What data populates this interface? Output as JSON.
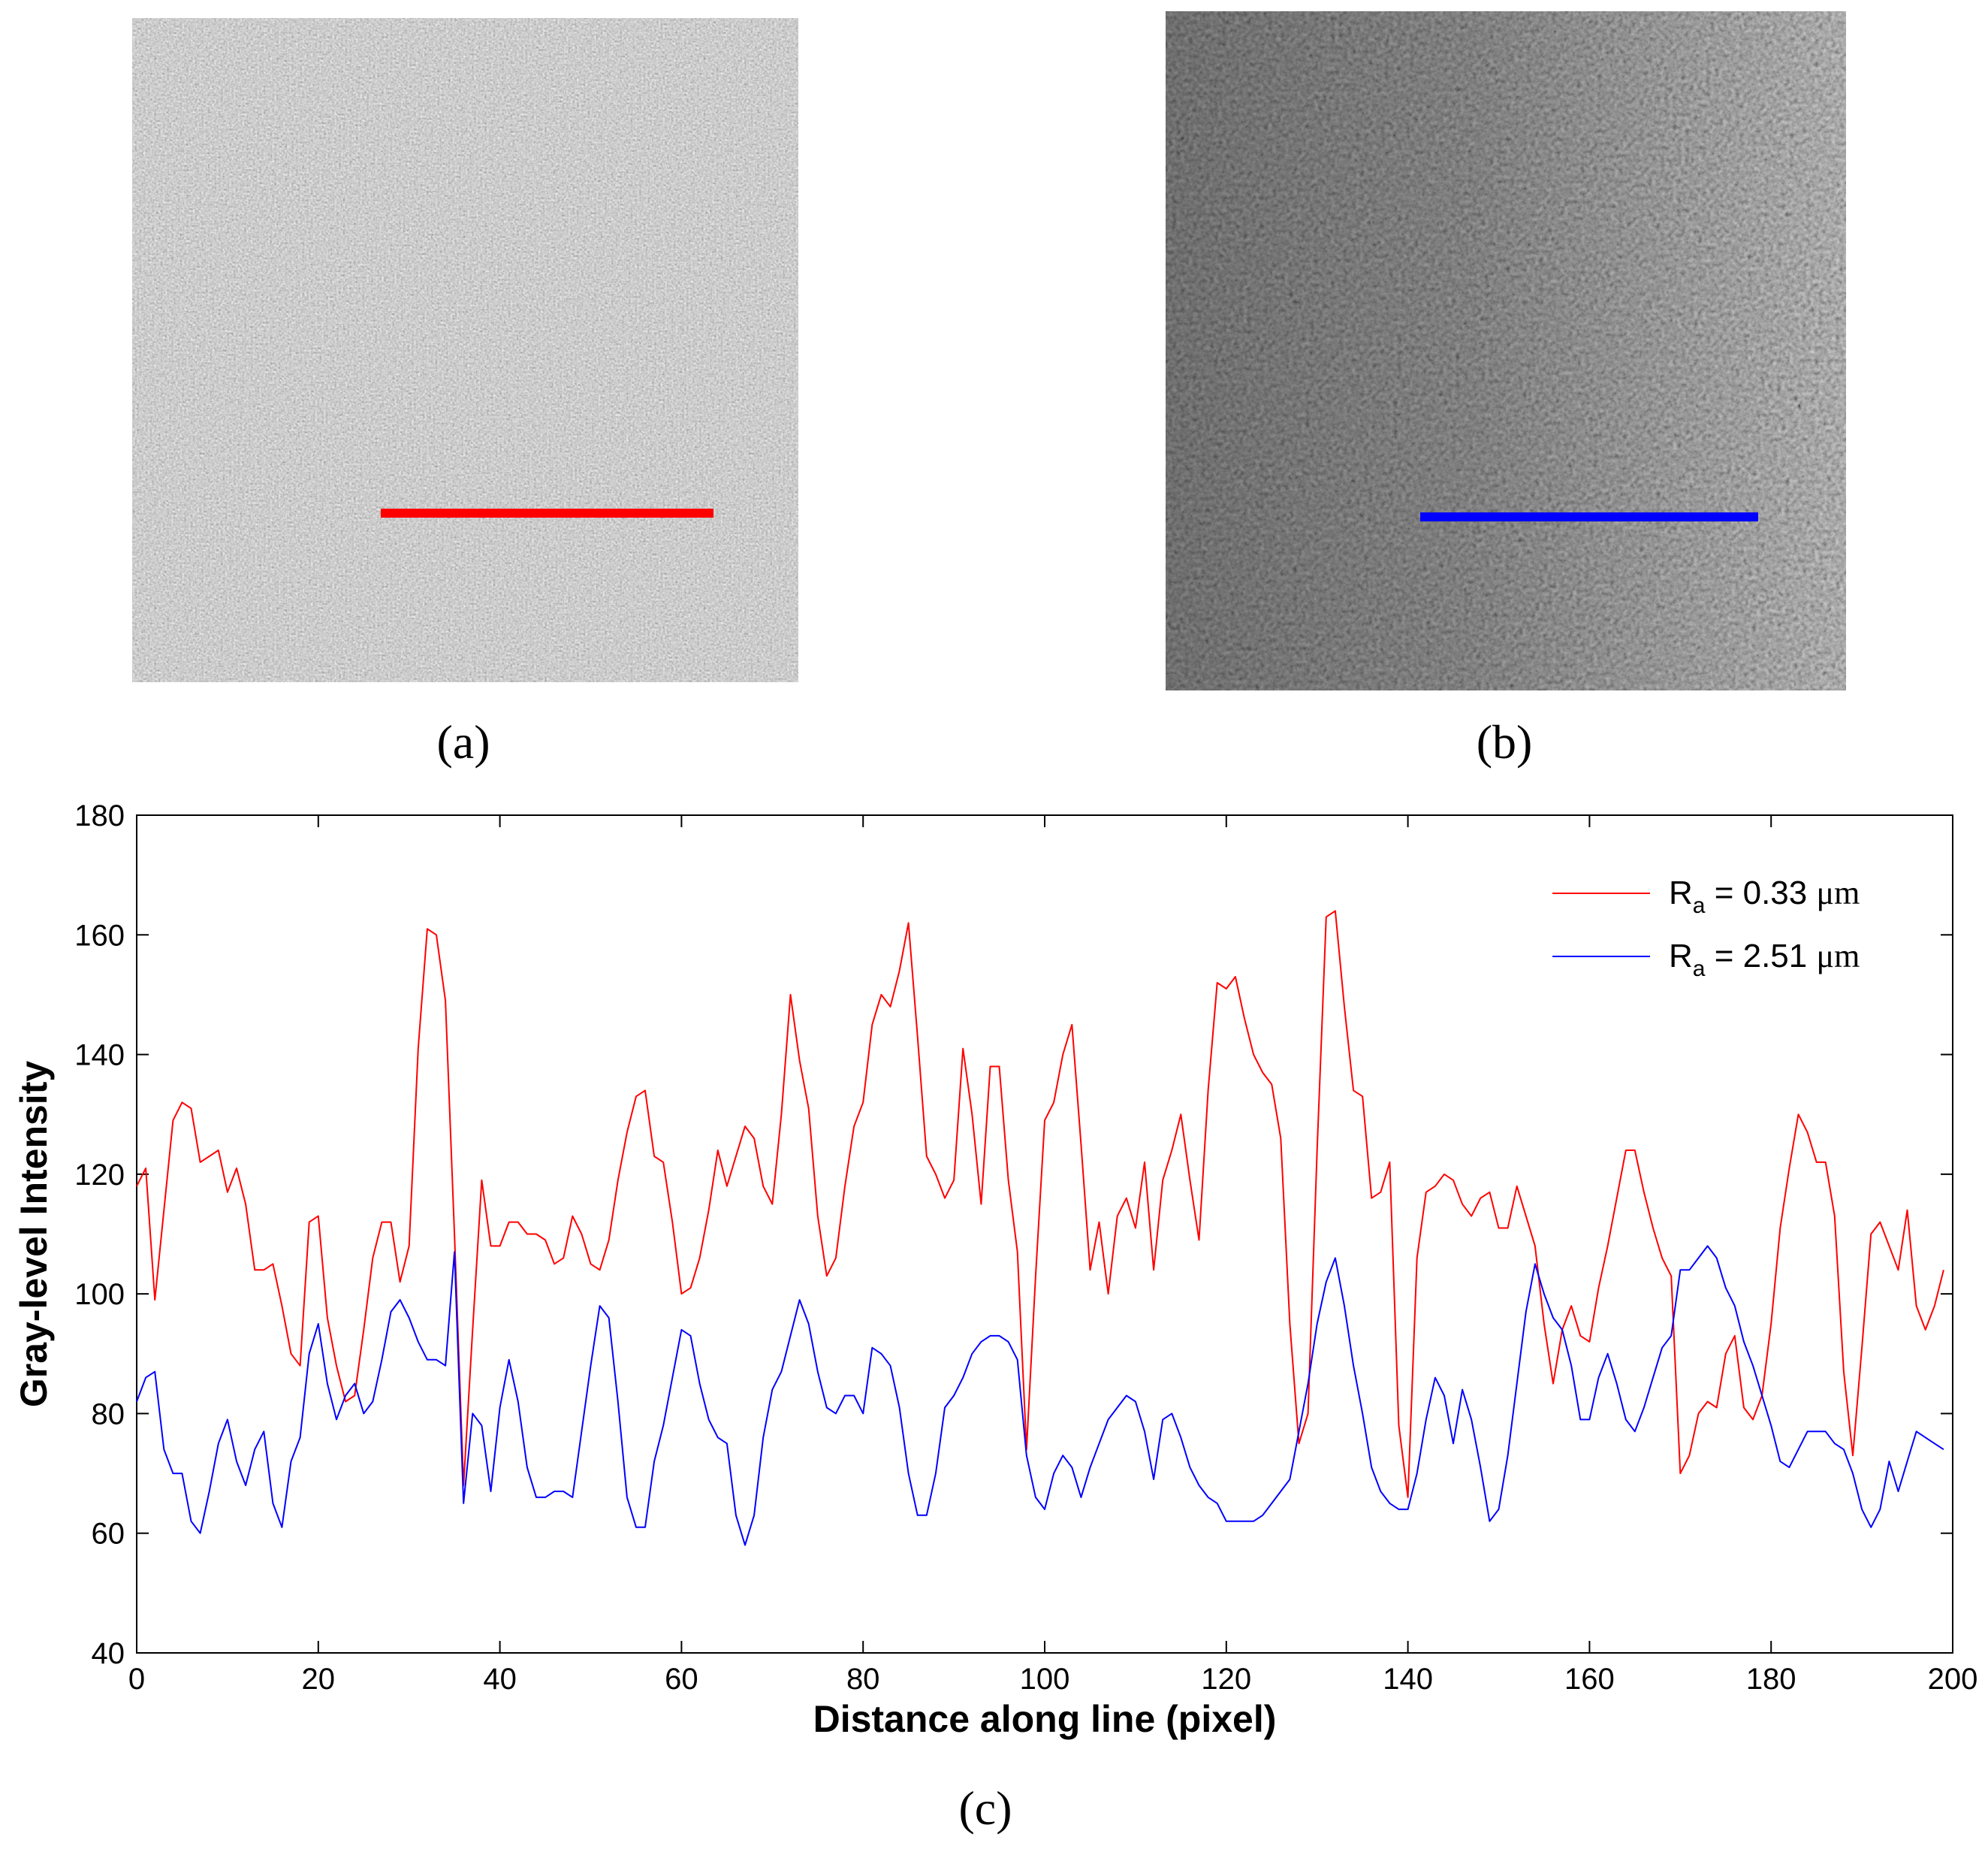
{
  "panels": {
    "a": {
      "label": "(a)",
      "line_color": "#ff0000"
    },
    "b": {
      "label": "(b)",
      "line_color": "#0000ff"
    },
    "c": {
      "label": "(c)"
    }
  },
  "chart_data": {
    "type": "line",
    "title": "",
    "xlabel": "Distance along line (pixel)",
    "ylabel": "Gray-level  Intensity",
    "xlim": [
      0,
      200
    ],
    "ylim": [
      40,
      180
    ],
    "xticks": [
      0,
      20,
      40,
      60,
      80,
      100,
      120,
      140,
      160,
      180,
      200
    ],
    "yticks": [
      40,
      60,
      80,
      100,
      120,
      140,
      160,
      180
    ],
    "grid": false,
    "legend": "top-right",
    "series": [
      {
        "name": "Ra = 0.33 μm",
        "legend_main": "R",
        "legend_sub": "a",
        "legend_rest": " = 0.33 ",
        "legend_unit": "μm",
        "color": "#ff0000",
        "values": [
          118,
          121,
          99,
          114,
          129,
          132,
          131,
          122,
          123,
          124,
          117,
          121,
          115,
          104,
          104,
          105,
          98,
          90,
          88,
          112,
          113,
          96,
          88,
          82,
          83,
          94,
          106,
          112,
          112,
          102,
          108,
          141,
          161,
          160,
          149,
          110,
          68,
          94,
          119,
          108,
          108,
          112,
          112,
          110,
          110,
          109,
          105,
          106,
          113,
          110,
          105,
          104,
          109,
          119,
          127,
          133,
          134,
          123,
          122,
          112,
          100,
          101,
          106,
          114,
          124,
          118,
          123,
          128,
          126,
          118,
          115,
          130,
          150,
          139,
          131,
          113,
          103,
          106,
          118,
          128,
          132,
          145,
          150,
          148,
          154,
          162,
          143,
          123,
          120,
          116,
          119,
          141,
          130,
          115,
          138,
          138,
          119,
          107,
          74,
          103,
          129,
          132,
          140,
          145,
          125,
          104,
          112,
          100,
          113,
          116,
          111,
          122,
          104,
          119,
          124,
          130,
          119,
          109,
          134,
          152,
          151,
          153,
          146,
          140,
          137,
          135,
          126,
          95,
          75,
          80,
          124,
          163,
          164,
          148,
          134,
          133,
          116,
          117,
          122,
          78,
          66,
          106,
          117,
          118,
          120,
          119,
          115,
          113,
          116,
          117,
          111,
          111,
          118,
          113,
          108,
          95,
          85,
          94,
          98,
          93,
          92,
          101,
          108,
          116,
          124,
          124,
          117,
          111,
          106,
          103,
          70,
          73,
          80,
          82,
          81,
          90,
          93,
          81,
          79,
          83,
          95,
          111,
          121,
          130,
          127,
          122,
          122,
          113,
          87,
          73,
          91,
          110,
          112,
          108,
          104,
          114,
          98,
          94,
          98,
          104
        ]
      },
      {
        "name": "Ra = 2.51 μm",
        "legend_main": "R",
        "legend_sub": "a",
        "legend_rest": " = 2.51 ",
        "legend_unit": "μm",
        "color": "#0000ff",
        "values": [
          82,
          86,
          87,
          74,
          70,
          70,
          62,
          60,
          67,
          75,
          79,
          72,
          68,
          74,
          77,
          65,
          61,
          72,
          76,
          90,
          95,
          85,
          79,
          83,
          85,
          80,
          82,
          89,
          97,
          99,
          96,
          92,
          89,
          89,
          88,
          107,
          65,
          80,
          78,
          67,
          81,
          89,
          82,
          71,
          66,
          66,
          67,
          67,
          66,
          77,
          88,
          98,
          96,
          82,
          66,
          61,
          61,
          72,
          78,
          86,
          94,
          93,
          85,
          79,
          76,
          75,
          63,
          58,
          63,
          76,
          84,
          87,
          93,
          99,
          95,
          87,
          81,
          80,
          83,
          83,
          80,
          91,
          90,
          88,
          81,
          70,
          63,
          63,
          70,
          81,
          83,
          86,
          90,
          92,
          93,
          93,
          92,
          89,
          73,
          66,
          64,
          70,
          73,
          71,
          66,
          71,
          75,
          79,
          81,
          83,
          82,
          77,
          69,
          79,
          80,
          76,
          71,
          68,
          66,
          65,
          62,
          62,
          62,
          62,
          63,
          65,
          67,
          69,
          77,
          85,
          95,
          102,
          106,
          98,
          88,
          80,
          71,
          67,
          65,
          64,
          64,
          70,
          79,
          86,
          83,
          75,
          84,
          79,
          71,
          62,
          64,
          73,
          85,
          97,
          105,
          100,
          96,
          94,
          88,
          79,
          79,
          86,
          90,
          85,
          79,
          77,
          81,
          86,
          91,
          93,
          104,
          104,
          106,
          108,
          106,
          101,
          98,
          92,
          88,
          83,
          78,
          72,
          71,
          74,
          77,
          77,
          77,
          75,
          74,
          70,
          64,
          61,
          64,
          72,
          67,
          72,
          77,
          76,
          75,
          74
        ]
      }
    ]
  }
}
